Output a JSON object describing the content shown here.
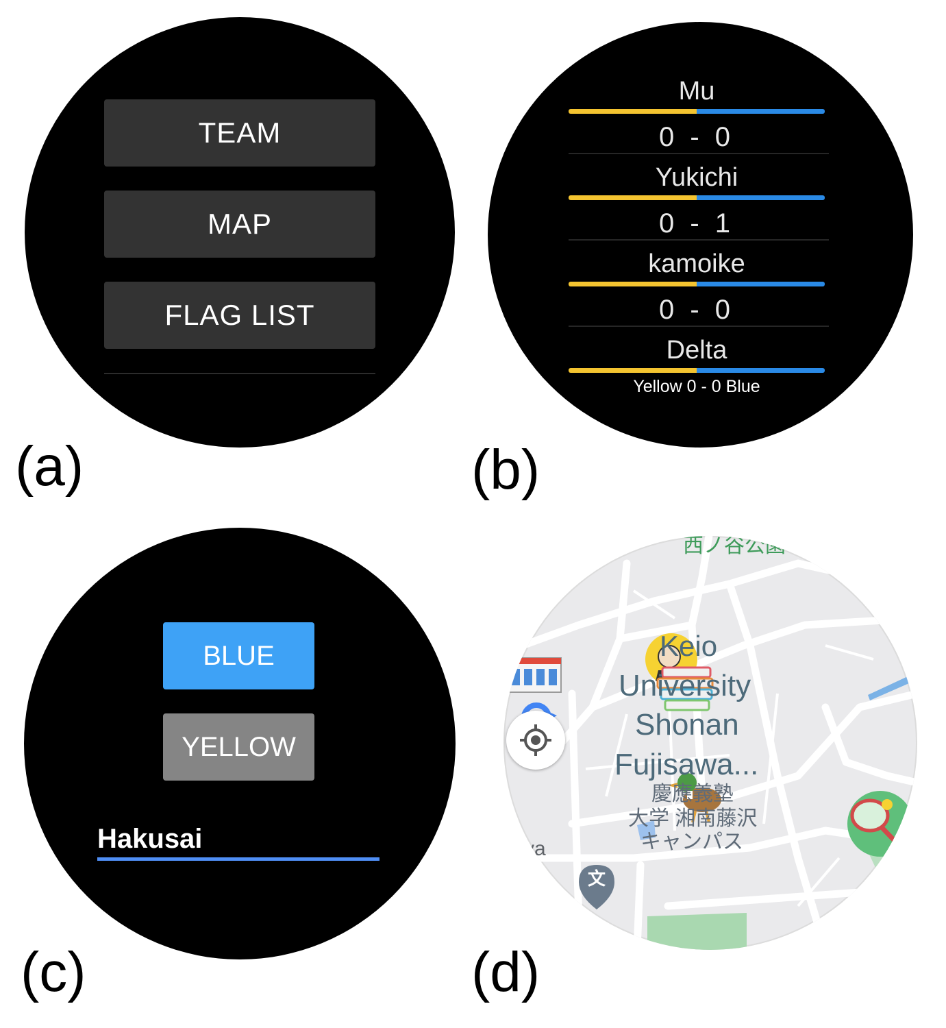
{
  "panels": {
    "a": {
      "label": "(a)",
      "menu": [
        "TEAM",
        "MAP",
        "FLAG LIST"
      ]
    },
    "b": {
      "label": "(b)",
      "flags": [
        {
          "name": "Mu",
          "score": "0 - 0"
        },
        {
          "name": "Yukichi",
          "score": "0 - 1"
        },
        {
          "name": "kamoike",
          "score": "0 - 0"
        },
        {
          "name": "Delta",
          "score": ""
        }
      ],
      "total": "Yellow 0 - 0 Blue",
      "colors": {
        "yellow": "#f4c430",
        "blue": "#2a8ae6"
      }
    },
    "c": {
      "label": "(c)",
      "blue_label": "BLUE",
      "yellow_label": "YELLOW",
      "player_name": "Hakusai",
      "colors": {
        "blue": "#3ea2f6",
        "yellow": "#858585",
        "underline": "#4f8ef5"
      }
    },
    "d": {
      "label": "(d)",
      "park_label": "西ノ谷公園",
      "campus_en": [
        "Keio",
        "University",
        "Shonan",
        "Fujisawa..."
      ],
      "campus_ja": [
        "慶應義塾",
        "大学 湘南藤沢",
        "キャンパス"
      ],
      "side_text": "va",
      "poi_glyph": "文",
      "icons": [
        "locate-icon",
        "yukichi-flag-icon",
        "books-flag-icon",
        "duck-flag-icon",
        "tennis-flag-icon",
        "building-icon"
      ]
    }
  }
}
